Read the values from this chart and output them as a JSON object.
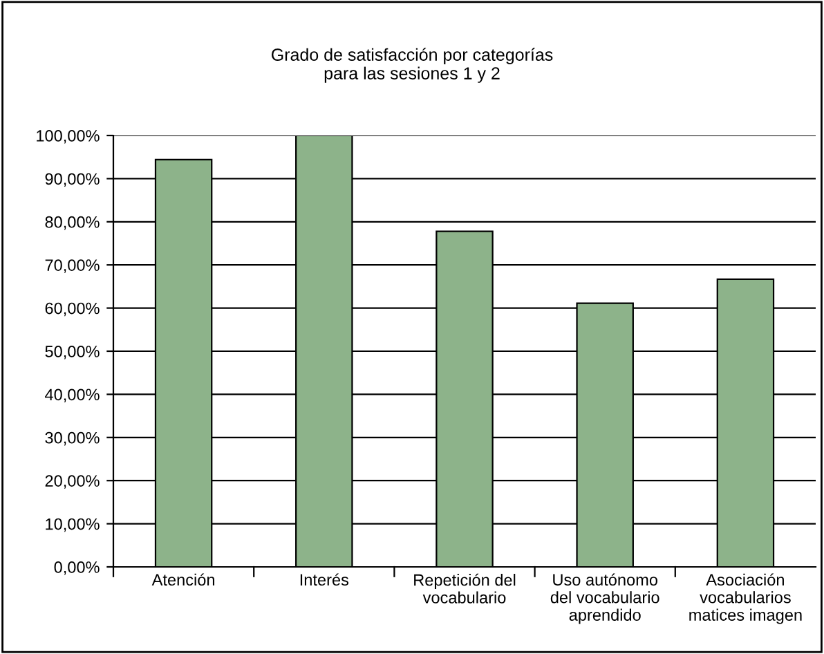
{
  "chart_data": {
    "type": "bar",
    "title": "Grado de satisfacción por categorías\npara las sesiones 1 y 2",
    "categories": [
      "Atención",
      "Interés",
      "Repetición del\nvocabulario",
      "Uso autónomo\ndel vocabulario\naprendido",
      "Asociación\nvocabularios\nmatices imagen"
    ],
    "values": [
      94.4,
      100,
      77.8,
      61.1,
      66.7
    ],
    "color": "#8db38a",
    "ylim": [
      0,
      100
    ],
    "yticks": [
      {
        "value": 0,
        "label": "0,00%"
      },
      {
        "value": 10,
        "label": "10,00%"
      },
      {
        "value": 20,
        "label": "20,00%"
      },
      {
        "value": 30,
        "label": "30,00%"
      },
      {
        "value": 40,
        "label": "40,00%"
      },
      {
        "value": 50,
        "label": "50,00%"
      },
      {
        "value": 60,
        "label": "60,00%"
      },
      {
        "value": 70,
        "label": "70,00%"
      },
      {
        "value": 80,
        "label": "80,00%"
      },
      {
        "value": 90,
        "label": "90,00%"
      },
      {
        "value": 100,
        "label": "100,00%"
      }
    ],
    "grid": "y",
    "legend": false
  }
}
